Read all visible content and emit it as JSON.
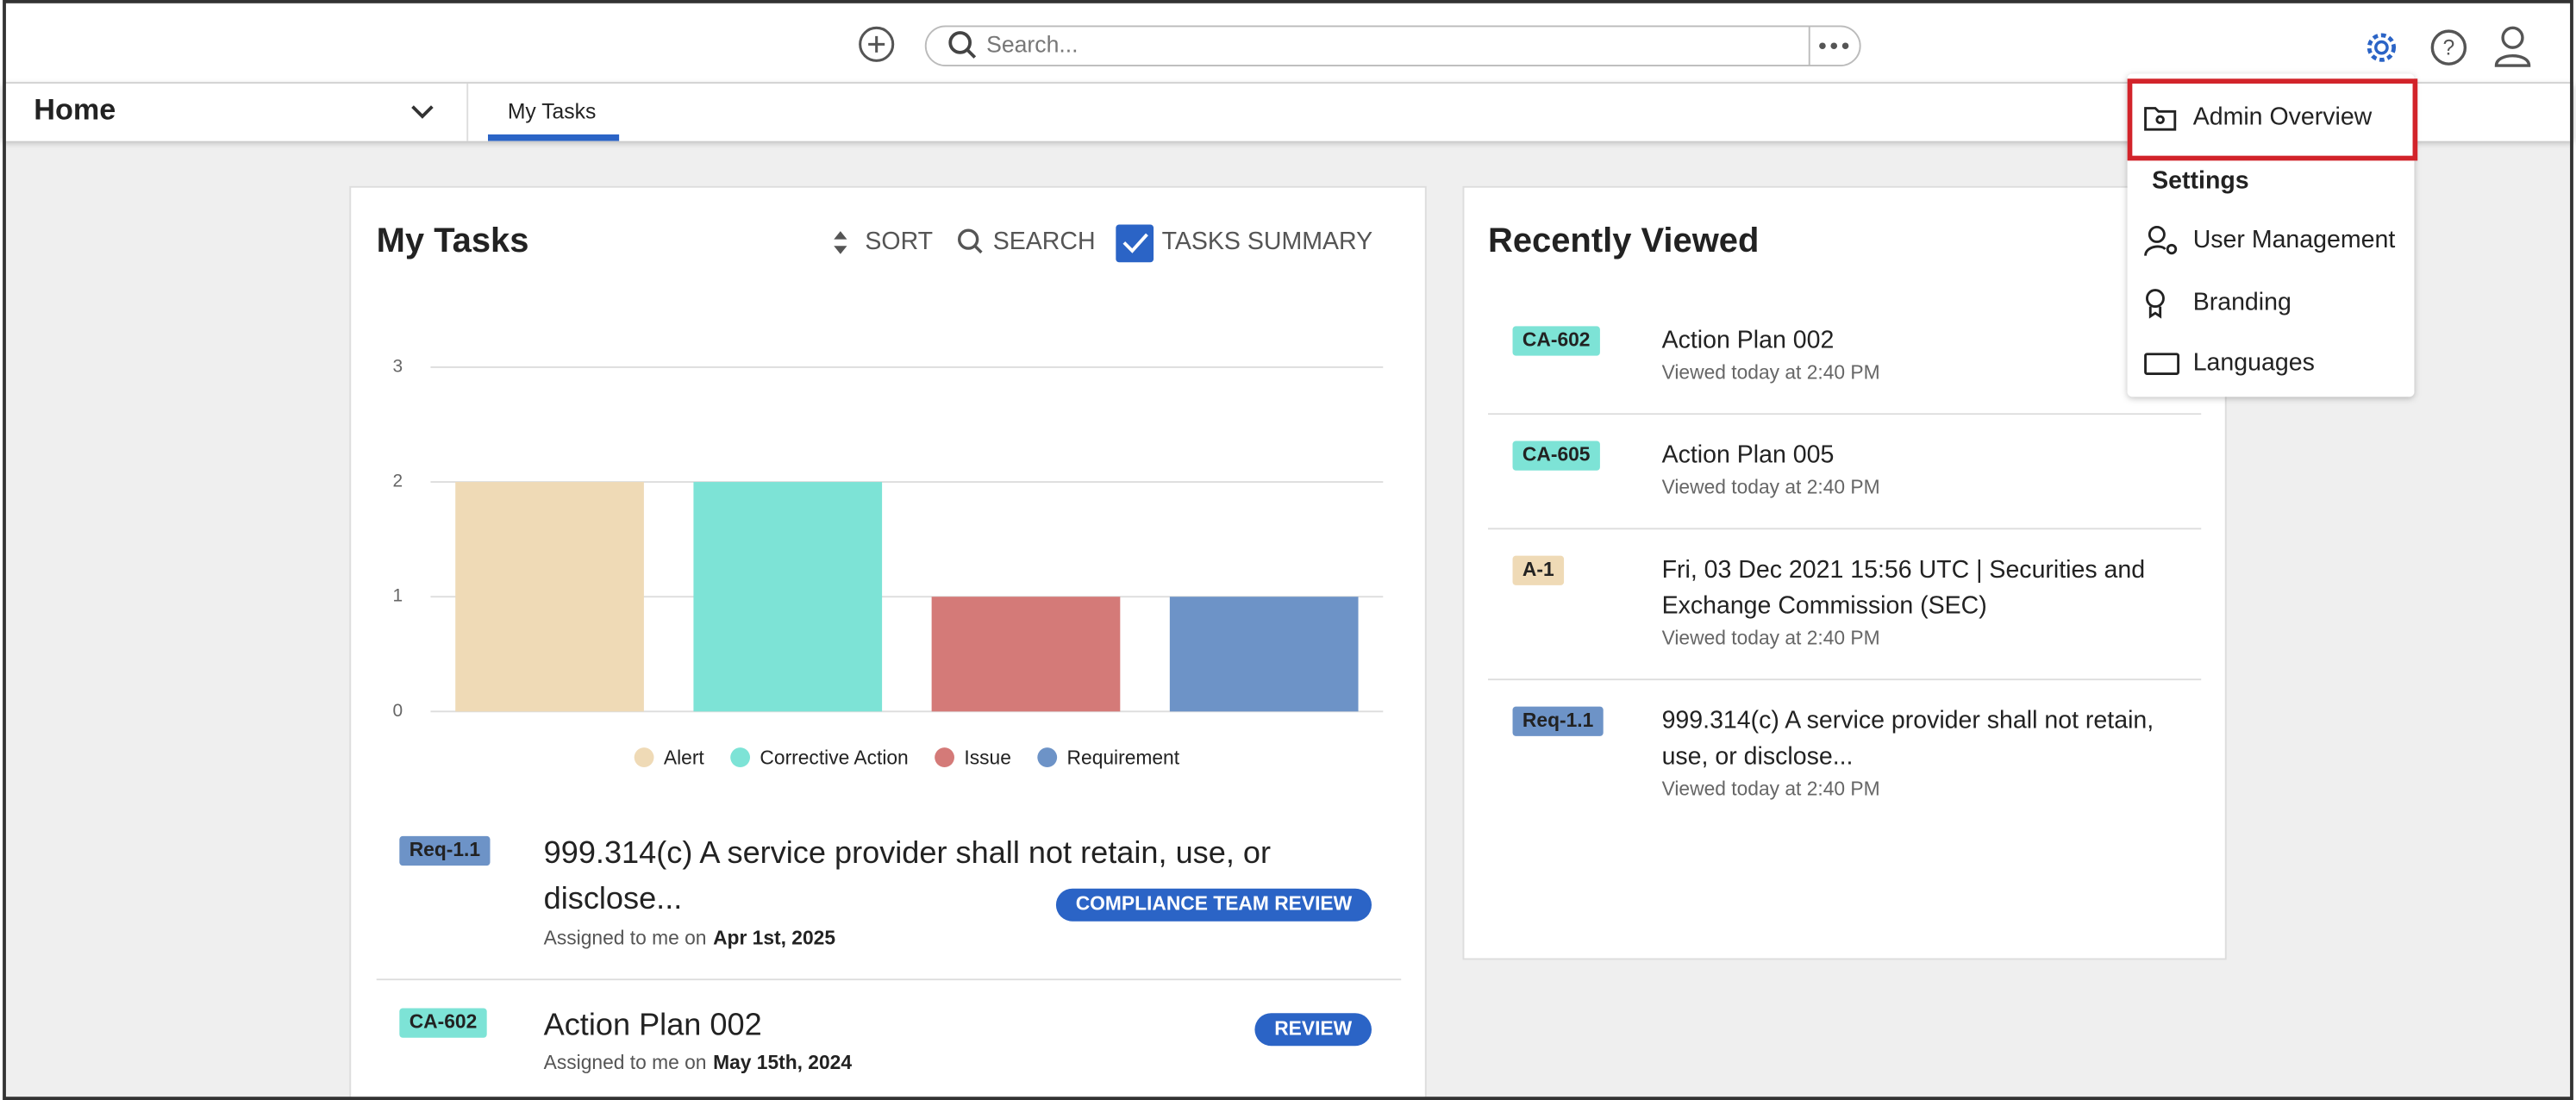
{
  "header": {
    "search_placeholder": "Search..."
  },
  "nav": {
    "home": "Home",
    "tab": "My Tasks"
  },
  "my_tasks": {
    "title": "My Tasks",
    "actions": [
      "SORT",
      "SEARCH",
      "TASKS SUMMARY"
    ],
    "tasks": [
      {
        "tag": "Req-1.1",
        "color": "#6d93c7",
        "title": "999.314(c) A service provider shall not retain, use, or disclose...",
        "status": "COMPLIANCE TEAM REVIEW",
        "assigned": "Assigned to me on",
        "date": "Apr 1st, 2025"
      },
      {
        "tag": "CA-602",
        "color": "#7de3d6",
        "title": "Action Plan 002",
        "status": "REVIEW",
        "assigned": "Assigned to me on",
        "date": "May 15th, 2024"
      }
    ]
  },
  "chart_data": {
    "type": "bar",
    "categories": [
      "Alert",
      "Corrective Action",
      "Issue",
      "Requirement"
    ],
    "values": [
      2,
      2,
      1,
      1
    ],
    "colors": [
      "#efdab6",
      "#7de3d6",
      "#d47a78",
      "#6d93c7"
    ],
    "ylim": [
      0,
      3
    ],
    "yticks": [
      0,
      1,
      2,
      3
    ],
    "grid": true,
    "legend": "bottom"
  },
  "recently_viewed": {
    "title": "Recently Viewed",
    "items": [
      {
        "tag": "CA-602",
        "color": "#7de3d6",
        "title": "Action Plan 002",
        "viewed": "Viewed today at 2:40 PM"
      },
      {
        "tag": "CA-605",
        "color": "#7de3d6",
        "title": "Action Plan 005",
        "viewed": "Viewed today at 2:40 PM"
      },
      {
        "tag": "A-1",
        "color": "#efdab6",
        "title": "Fri, 03 Dec 2021 15:56 UTC | Securities and Exchange Commission (SEC)",
        "viewed": "Viewed today at 2:40 PM"
      },
      {
        "tag": "Req-1.1",
        "color": "#6d93c7",
        "title": "999.314(c) A service provider shall not retain, use, or disclose...",
        "viewed": "Viewed today at 2:40 PM"
      }
    ]
  },
  "menu": {
    "admin": "Admin Overview",
    "section": "Settings",
    "items": [
      "User Management",
      "Branding",
      "Languages"
    ]
  }
}
